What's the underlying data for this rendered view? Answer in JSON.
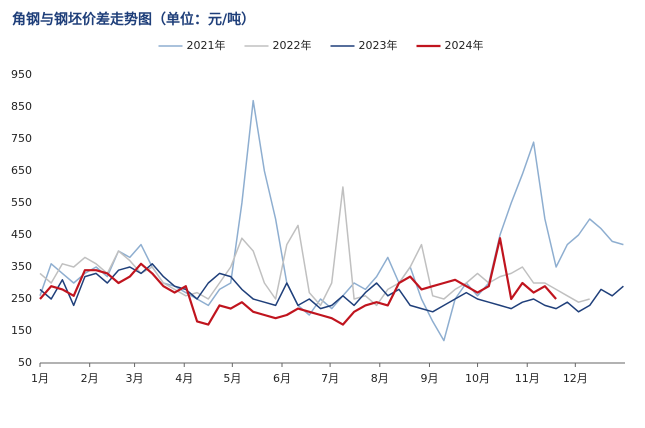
{
  "chart_data": {
    "type": "line",
    "title": "角钢与钢坯价差走势图（单位：元/吨）",
    "x": [
      1,
      8,
      15,
      22,
      29,
      36,
      43,
      50,
      57,
      64,
      71,
      78,
      85,
      92,
      99,
      106,
      113,
      120,
      127,
      134,
      141,
      148,
      155,
      162,
      169,
      176,
      183,
      190,
      197,
      204,
      211,
      218,
      225,
      232,
      239,
      246,
      253,
      260,
      267,
      274,
      281,
      288,
      295,
      302,
      309,
      316,
      323,
      330,
      337,
      344,
      351,
      358,
      365
    ],
    "xlim": [
      1,
      366
    ],
    "xticks": [
      {
        "value": 1,
        "label": "1月"
      },
      {
        "value": 32,
        "label": "2月"
      },
      {
        "value": 60,
        "label": "3月"
      },
      {
        "value": 91,
        "label": "4月"
      },
      {
        "value": 121,
        "label": "5月"
      },
      {
        "value": 152,
        "label": "6月"
      },
      {
        "value": 182,
        "label": "7月"
      },
      {
        "value": 213,
        "label": "8月"
      },
      {
        "value": 244,
        "label": "9月"
      },
      {
        "value": 274,
        "label": "10月"
      },
      {
        "value": 305,
        "label": "11月"
      },
      {
        "value": 335,
        "label": "12月"
      }
    ],
    "ylim": [
      50,
      950
    ],
    "yticks": [
      50,
      150,
      250,
      350,
      450,
      550,
      650,
      750,
      850,
      950
    ],
    "grid": false,
    "legend": "top",
    "series": [
      {
        "name": "2021年",
        "color": "#8eaed0",
        "values": [
          260,
          360,
          330,
          300,
          330,
          350,
          320,
          400,
          380,
          420,
          350,
          300,
          290,
          270,
          250,
          230,
          280,
          300,
          550,
          870,
          650,
          500,
          300,
          230,
          200,
          250,
          220,
          260,
          300,
          280,
          320,
          380,
          300,
          350,
          250,
          180,
          120,
          250,
          300,
          260,
          300,
          450,
          550,
          640,
          740,
          500,
          350,
          420,
          450,
          500,
          470,
          430,
          420
        ]
      },
      {
        "name": "2022年",
        "color": "#c0c0c0",
        "values": [
          330,
          300,
          360,
          350,
          380,
          360,
          330,
          400,
          370,
          330,
          350,
          300,
          280,
          260,
          270,
          250,
          300,
          350,
          440,
          400,
          300,
          250,
          420,
          480,
          270,
          230,
          300,
          600,
          250,
          260,
          230,
          280,
          300,
          350,
          420,
          260,
          250,
          280,
          300,
          330,
          300,
          320,
          330,
          350,
          300,
          300,
          280,
          260,
          240,
          250,
          null,
          null,
          null
        ]
      },
      {
        "name": "2023年",
        "color": "#1f3f7a",
        "values": [
          280,
          250,
          310,
          230,
          320,
          330,
          300,
          340,
          350,
          330,
          360,
          320,
          290,
          280,
          250,
          300,
          330,
          320,
          280,
          250,
          240,
          230,
          300,
          230,
          250,
          220,
          230,
          260,
          230,
          270,
          300,
          260,
          280,
          230,
          220,
          210,
          230,
          250,
          270,
          250,
          240,
          230,
          220,
          240,
          250,
          230,
          220,
          240,
          210,
          230,
          280,
          260,
          290
        ]
      },
      {
        "name": "2024年",
        "color": "#c0141e",
        "values": [
          250,
          290,
          280,
          260,
          340,
          340,
          330,
          300,
          320,
          360,
          330,
          290,
          270,
          290,
          180,
          170,
          230,
          220,
          240,
          210,
          200,
          190,
          200,
          220,
          210,
          200,
          190,
          170,
          210,
          230,
          240,
          230,
          300,
          320,
          280,
          290,
          300,
          310,
          290,
          270,
          290,
          440,
          250,
          300,
          270,
          290,
          250,
          null,
          null,
          null,
          null,
          null,
          null
        ]
      }
    ]
  }
}
